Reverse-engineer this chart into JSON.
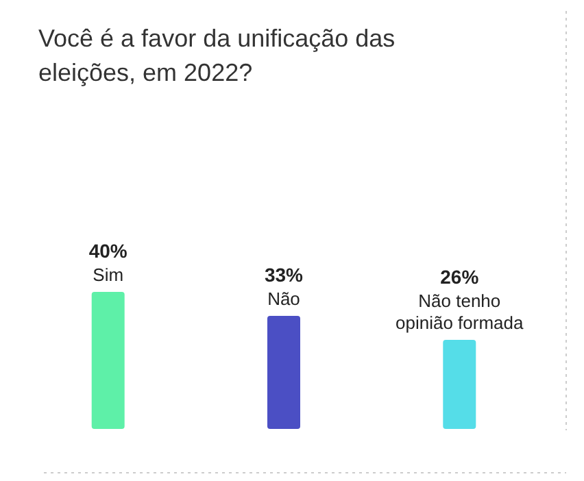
{
  "chart_data": {
    "type": "bar",
    "title": "Você é a favor da unificação das eleições, em 2022?",
    "categories": [
      "Sim",
      "Não",
      "Não tenho opinião formada"
    ],
    "values": [
      40,
      33,
      26
    ],
    "colors": [
      "#5ef0a8",
      "#4b4fc4",
      "#55dde8"
    ],
    "value_labels": [
      "40%",
      "33%",
      "26%"
    ]
  }
}
